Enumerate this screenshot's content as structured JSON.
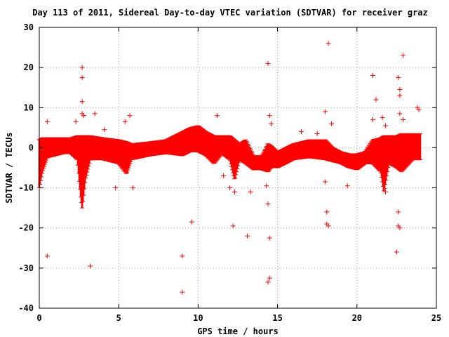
{
  "chart_data": {
    "type": "scatter",
    "title": "Day 113 of 2011, Sidereal Day-to-day VTEC variation (SDTVAR) for receiver graz",
    "xlabel": "GPS time / hours",
    "ylabel": "SDTVAR / TECUs",
    "xlim": [
      0,
      25
    ],
    "ylim": [
      -40,
      30
    ],
    "x_ticks": [
      "0",
      "5",
      "10",
      "15",
      "20",
      "25"
    ],
    "y_ticks": [
      "30",
      "20",
      "10",
      "0",
      "-10",
      "-20",
      "-30",
      "-40"
    ],
    "grid": true,
    "legend": "none",
    "marker": "plus",
    "colors": {
      "series": "#ff0000",
      "grid": "#a0a0a0",
      "frame": "#000000"
    },
    "band": [
      {
        "x": 0.0,
        "lo": -10,
        "hi": 2
      },
      {
        "x": 0.2,
        "lo": -6,
        "hi": 2.5
      },
      {
        "x": 0.5,
        "lo": -2.5,
        "hi": 2.5
      },
      {
        "x": 1.0,
        "lo": -2,
        "hi": 2.5
      },
      {
        "x": 1.5,
        "lo": -1.5,
        "hi": 2.5
      },
      {
        "x": 2.0,
        "lo": -1.5,
        "hi": 2.5
      },
      {
        "x": 2.4,
        "lo": -3,
        "hi": 3
      },
      {
        "x": 2.6,
        "lo": -12,
        "hi": 3
      },
      {
        "x": 2.7,
        "lo": -15,
        "hi": 3
      },
      {
        "x": 2.9,
        "lo": -8,
        "hi": 3
      },
      {
        "x": 3.2,
        "lo": -3,
        "hi": 3
      },
      {
        "x": 4.0,
        "lo": -3,
        "hi": 2.5
      },
      {
        "x": 5.0,
        "lo": -4,
        "hi": 2
      },
      {
        "x": 5.5,
        "lo": -6.5,
        "hi": 1.5
      },
      {
        "x": 5.8,
        "lo": -3,
        "hi": 1
      },
      {
        "x": 7.0,
        "lo": -2,
        "hi": 1.5
      },
      {
        "x": 8.0,
        "lo": -1.5,
        "hi": 2
      },
      {
        "x": 9.0,
        "lo": -2,
        "hi": 4
      },
      {
        "x": 9.5,
        "lo": -1,
        "hi": 5
      },
      {
        "x": 10.0,
        "lo": -1,
        "hi": 5.5
      },
      {
        "x": 10.5,
        "lo": -2,
        "hi": 4
      },
      {
        "x": 11.0,
        "lo": -4,
        "hi": 3
      },
      {
        "x": 11.5,
        "lo": -1.5,
        "hi": 3
      },
      {
        "x": 12.0,
        "lo": -3,
        "hi": 3
      },
      {
        "x": 12.3,
        "lo": -8,
        "hi": 2
      },
      {
        "x": 12.6,
        "lo": -3,
        "hi": 1
      },
      {
        "x": 13.0,
        "lo": -4,
        "hi": 2
      },
      {
        "x": 13.5,
        "lo": -5.5,
        "hi": -2
      },
      {
        "x": 14.0,
        "lo": -5.5,
        "hi": -2
      },
      {
        "x": 14.4,
        "lo": -6,
        "hi": 1
      },
      {
        "x": 14.6,
        "lo": -5,
        "hi": 0.5
      },
      {
        "x": 15.0,
        "lo": -5,
        "hi": -1
      },
      {
        "x": 15.5,
        "lo": -4,
        "hi": 0
      },
      {
        "x": 16.0,
        "lo": -3,
        "hi": 1
      },
      {
        "x": 17.0,
        "lo": -2.5,
        "hi": 2
      },
      {
        "x": 18.0,
        "lo": -3,
        "hi": 2
      },
      {
        "x": 18.5,
        "lo": -3.5,
        "hi": 0
      },
      {
        "x": 19.0,
        "lo": -4,
        "hi": -1
      },
      {
        "x": 19.5,
        "lo": -5,
        "hi": -1.5
      },
      {
        "x": 20.0,
        "lo": -5.5,
        "hi": -1.5
      },
      {
        "x": 20.5,
        "lo": -4,
        "hi": -1
      },
      {
        "x": 21.0,
        "lo": -4,
        "hi": 2
      },
      {
        "x": 21.5,
        "lo": -6,
        "hi": 2.5
      },
      {
        "x": 21.7,
        "lo": -11,
        "hi": 3
      },
      {
        "x": 22.0,
        "lo": -4,
        "hi": 3
      },
      {
        "x": 22.5,
        "lo": -5,
        "hi": 3
      },
      {
        "x": 22.8,
        "lo": -6,
        "hi": 3.5
      },
      {
        "x": 23.5,
        "lo": -3,
        "hi": 3.5
      },
      {
        "x": 24.0,
        "lo": -3,
        "hi": 3.5
      }
    ],
    "outliers": [
      {
        "x": 0.5,
        "y": 6.5
      },
      {
        "x": 0.5,
        "y": -27
      },
      {
        "x": 2.3,
        "y": 6.5
      },
      {
        "x": 2.7,
        "y": 20
      },
      {
        "x": 2.7,
        "y": 17.5
      },
      {
        "x": 2.7,
        "y": 11.5
      },
      {
        "x": 2.7,
        "y": 8.5
      },
      {
        "x": 2.8,
        "y": 8
      },
      {
        "x": 3.2,
        "y": -29.5
      },
      {
        "x": 3.5,
        "y": 8.5
      },
      {
        "x": 4.1,
        "y": 4.5
      },
      {
        "x": 4.8,
        "y": -10
      },
      {
        "x": 5.4,
        "y": 6.5
      },
      {
        "x": 5.7,
        "y": 8
      },
      {
        "x": 5.9,
        "y": -10
      },
      {
        "x": 9.0,
        "y": -27
      },
      {
        "x": 9.0,
        "y": -36
      },
      {
        "x": 9.6,
        "y": -18.5
      },
      {
        "x": 11.2,
        "y": 8
      },
      {
        "x": 11.6,
        "y": -7
      },
      {
        "x": 12.0,
        "y": -10
      },
      {
        "x": 12.2,
        "y": -19.5
      },
      {
        "x": 12.3,
        "y": -11
      },
      {
        "x": 13.1,
        "y": -22
      },
      {
        "x": 13.3,
        "y": -11
      },
      {
        "x": 14.4,
        "y": 21
      },
      {
        "x": 14.5,
        "y": 8
      },
      {
        "x": 14.6,
        "y": 6
      },
      {
        "x": 14.4,
        "y": -14
      },
      {
        "x": 14.5,
        "y": -22.5
      },
      {
        "x": 14.5,
        "y": -32.5
      },
      {
        "x": 14.4,
        "y": -33.5
      },
      {
        "x": 14.3,
        "y": -9.5
      },
      {
        "x": 16.5,
        "y": 4
      },
      {
        "x": 17.5,
        "y": 3.5
      },
      {
        "x": 18.0,
        "y": 9
      },
      {
        "x": 18.2,
        "y": 26
      },
      {
        "x": 18.1,
        "y": -16
      },
      {
        "x": 18.1,
        "y": -19
      },
      {
        "x": 18.2,
        "y": -19.5
      },
      {
        "x": 18.4,
        "y": 6
      },
      {
        "x": 18.0,
        "y": -8.5
      },
      {
        "x": 19.4,
        "y": -9.5
      },
      {
        "x": 21.0,
        "y": 18
      },
      {
        "x": 21.0,
        "y": 7
      },
      {
        "x": 21.2,
        "y": 12
      },
      {
        "x": 21.6,
        "y": 7.5
      },
      {
        "x": 21.8,
        "y": 5.5
      },
      {
        "x": 21.8,
        "y": -11
      },
      {
        "x": 22.6,
        "y": 17.5
      },
      {
        "x": 22.7,
        "y": 14.5
      },
      {
        "x": 22.7,
        "y": 13
      },
      {
        "x": 22.7,
        "y": 8.5
      },
      {
        "x": 22.6,
        "y": -16
      },
      {
        "x": 22.6,
        "y": -19.5
      },
      {
        "x": 22.7,
        "y": -20
      },
      {
        "x": 22.5,
        "y": -26
      },
      {
        "x": 22.9,
        "y": 23
      },
      {
        "x": 22.9,
        "y": 7
      },
      {
        "x": 22.8,
        "y": -5.5
      },
      {
        "x": 23.8,
        "y": 10
      },
      {
        "x": 23.9,
        "y": 9.5
      }
    ]
  }
}
